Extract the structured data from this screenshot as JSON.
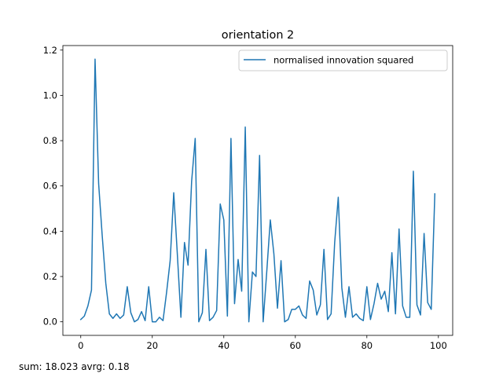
{
  "chart_data": {
    "type": "line",
    "title": "orientation 2",
    "xlabel": "",
    "ylabel": "",
    "xlim": [
      -5,
      104
    ],
    "ylim": [
      -0.06,
      1.22
    ],
    "xticks": [
      0,
      20,
      40,
      60,
      80,
      100
    ],
    "yticks": [
      0.0,
      0.2,
      0.4,
      0.6,
      0.8,
      1.0,
      1.2
    ],
    "grid": false,
    "legend": "top-right",
    "series": [
      {
        "name": "normalised innovation squared",
        "color": "#1f77b4",
        "x": [
          0,
          1,
          2,
          3,
          4,
          5,
          6,
          7,
          8,
          9,
          10,
          11,
          12,
          13,
          14,
          15,
          16,
          17,
          18,
          19,
          20,
          21,
          22,
          23,
          24,
          25,
          26,
          27,
          28,
          29,
          30,
          31,
          32,
          33,
          34,
          35,
          36,
          37,
          38,
          39,
          40,
          41,
          42,
          43,
          44,
          45,
          46,
          47,
          48,
          49,
          50,
          51,
          52,
          53,
          54,
          55,
          56,
          57,
          58,
          59,
          60,
          61,
          62,
          63,
          64,
          65,
          66,
          67,
          68,
          69,
          70,
          71,
          72,
          73,
          74,
          75,
          76,
          77,
          78,
          79,
          80,
          81,
          82,
          83,
          84,
          85,
          86,
          87,
          88,
          89,
          90,
          91,
          92,
          93,
          94,
          95,
          96,
          97,
          98,
          99
        ],
        "values": [
          0.01,
          0.025,
          0.07,
          0.14,
          1.16,
          0.61,
          0.38,
          0.17,
          0.035,
          0.015,
          0.035,
          0.015,
          0.03,
          0.155,
          0.04,
          0.0,
          0.01,
          0.045,
          0.005,
          0.155,
          0.0,
          0.0,
          0.02,
          0.005,
          0.13,
          0.27,
          0.57,
          0.3,
          0.02,
          0.35,
          0.25,
          0.62,
          0.81,
          0.0,
          0.04,
          0.32,
          0.005,
          0.02,
          0.05,
          0.52,
          0.45,
          0.025,
          0.81,
          0.08,
          0.275,
          0.135,
          0.86,
          0.0,
          0.22,
          0.2,
          0.735,
          0.0,
          0.22,
          0.45,
          0.3,
          0.06,
          0.27,
          0.0,
          0.01,
          0.055,
          0.055,
          0.07,
          0.03,
          0.015,
          0.18,
          0.14,
          0.03,
          0.075,
          0.32,
          0.01,
          0.035,
          0.35,
          0.55,
          0.15,
          0.02,
          0.155,
          0.02,
          0.035,
          0.015,
          0.005,
          0.155,
          0.01,
          0.08,
          0.17,
          0.1,
          0.135,
          0.045,
          0.305,
          0.035,
          0.41,
          0.07,
          0.02,
          0.02,
          0.665,
          0.075,
          0.03,
          0.39,
          0.085,
          0.055,
          0.565
        ]
      }
    ]
  },
  "footer": {
    "summary": "sum: 18.023 avrg: 0.18"
  }
}
